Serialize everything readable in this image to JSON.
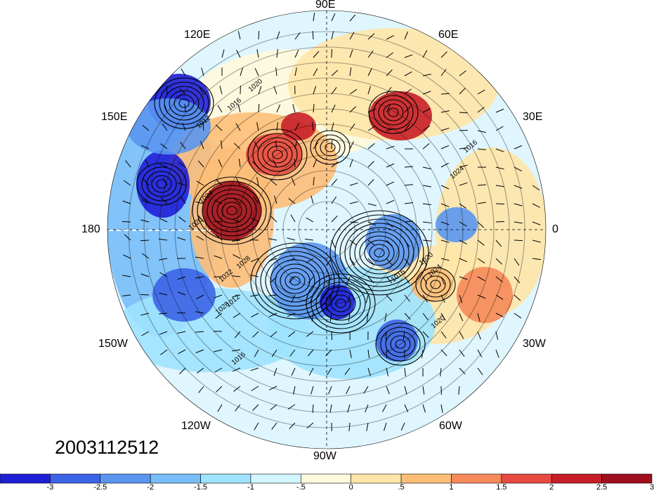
{
  "map": {
    "projection": "north-polar-stereographic",
    "field": "sea-level pressure contours with shaded anomaly and wind barbs",
    "date_stamp": "2003112512",
    "longitude_labels": {
      "top": "90E",
      "top_left": "120E",
      "top_right": "60E",
      "upper_left": "150E",
      "upper_right": "30E",
      "left": "180",
      "right": "0",
      "lower_left": "150W",
      "lower_right": "30W",
      "bottom_left": "120W",
      "bottom_right": "60W",
      "bottom": "90W"
    },
    "contour_labels": [
      "1020",
      "1016",
      "1012",
      "1008",
      "1020",
      "1024",
      "1028",
      "1032",
      "1016",
      "1028",
      "1024",
      "1020",
      "1016",
      "1012",
      "1016",
      "1024",
      "1020"
    ],
    "colors": {
      "ocean_bg": "#dff6ff",
      "contour": "#000000"
    }
  },
  "colorbar": {
    "tick_labels": [
      "-3",
      "-2.5",
      "-2",
      "-1.5",
      "-1",
      "-.5",
      "0",
      ".5",
      "1",
      "1.5",
      "2",
      "2.5",
      "3"
    ],
    "colors": [
      "#1f1fd6",
      "#3c64e6",
      "#5a96f0",
      "#78bef8",
      "#9fe3ff",
      "#d2f5ff",
      "#fffadc",
      "#ffe6a8",
      "#fdbe78",
      "#f68a5a",
      "#e64a40",
      "#c81e28",
      "#a00f1e"
    ]
  }
}
